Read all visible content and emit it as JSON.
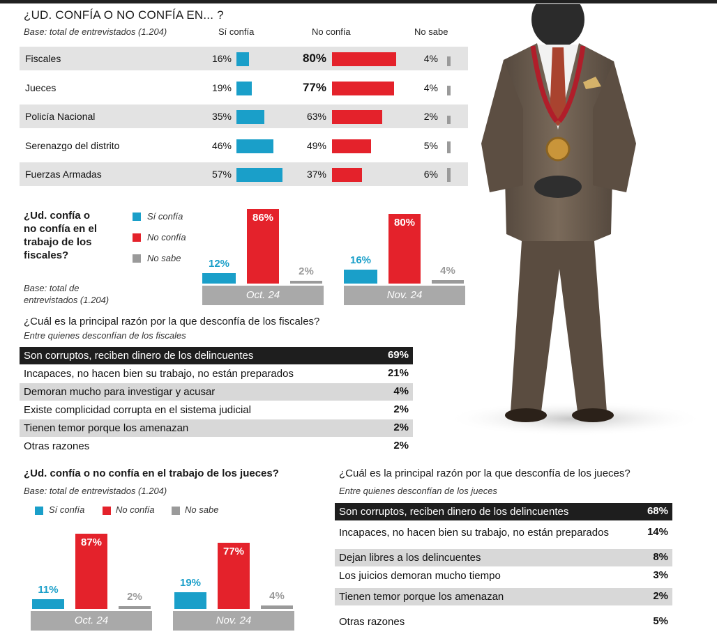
{
  "header": {
    "title": "¿UD. CONFÍA O NO CONFÍA EN... ?",
    "base": "Base: total de entrevistados (1.204)",
    "col_si": "Sí confía",
    "col_no": "No confía",
    "col_ns": "No sabe"
  },
  "colors": {
    "si": "#1a9fc9",
    "no": "#e4222b",
    "ns": "#9a9a9a",
    "dark": "#1e1e1e"
  },
  "chart_data": [
    {
      "type": "bar",
      "title": "¿UD. CONFÍA O NO CONFÍA EN... ?",
      "orientation": "horizontal",
      "categories": [
        "Fiscales",
        "Jueces",
        "Policía Nacional",
        "Serenazgo del distrito",
        "Fuerzas Armadas"
      ],
      "series": [
        {
          "name": "Sí confía",
          "values": [
            16,
            19,
            35,
            46,
            57
          ],
          "labels": [
            "16%",
            "19%",
            "35%",
            "46%",
            "57%"
          ]
        },
        {
          "name": "No confía",
          "values": [
            80,
            77,
            63,
            49,
            37
          ],
          "labels": [
            "80%",
            "77%",
            "63%",
            "49%",
            "37%"
          ]
        },
        {
          "name": "No sabe",
          "values": [
            4,
            4,
            2,
            5,
            6
          ],
          "labels": [
            "4%",
            "4%",
            "2%",
            "5%",
            "6%"
          ]
        }
      ]
    },
    {
      "type": "bar",
      "title": "¿Ud. confía o no confía en el trabajo de los fiscales?",
      "note": "Base: total de entrevistados (1.204)",
      "categories": [
        "Oct. 24",
        "Nov. 24"
      ],
      "series": [
        {
          "name": "Sí confía",
          "values": [
            12,
            16
          ],
          "labels": [
            "12%",
            "16%"
          ]
        },
        {
          "name": "No confía",
          "values": [
            86,
            80
          ],
          "labels": [
            "86%",
            "80%"
          ]
        },
        {
          "name": "No sabe",
          "values": [
            2,
            4
          ],
          "labels": [
            "2%",
            "4%"
          ]
        }
      ]
    },
    {
      "type": "table",
      "title": "¿Cuál es la principal razón por la que desconfía de los fiscales?",
      "subtitle": "Entre quienes desconfían de los fiscales",
      "rows": [
        {
          "label": "Son corruptos, reciben dinero de los delincuentes",
          "value": "69%"
        },
        {
          "label": "Incapaces, no hacen bien su trabajo, no están preparados",
          "value": "21%"
        },
        {
          "label": "Demoran mucho para investigar y acusar",
          "value": "4%"
        },
        {
          "label": "Existe complicidad corrupta en el sistema judicial",
          "value": "2%"
        },
        {
          "label": "Tienen temor porque los amenazan",
          "value": "2%"
        },
        {
          "label": "Otras razones",
          "value": "2%"
        }
      ]
    },
    {
      "type": "bar",
      "title": "¿Ud. confía o no confía en el trabajo de los jueces?",
      "note": "Base: total de entrevistados (1.204)",
      "categories": [
        "Oct. 24",
        "Nov. 24"
      ],
      "series": [
        {
          "name": "Sí confía",
          "values": [
            11,
            19
          ],
          "labels": [
            "11%",
            "19%"
          ]
        },
        {
          "name": "No confía",
          "values": [
            87,
            77
          ],
          "labels": [
            "87%",
            "77%"
          ]
        },
        {
          "name": "No sabe",
          "values": [
            2,
            4
          ],
          "labels": [
            "2%",
            "4%"
          ]
        }
      ]
    },
    {
      "type": "table",
      "title": "¿Cuál es la principal razón por la que desconfía de los jueces?",
      "subtitle": "Entre quienes desconfían de los jueces",
      "rows": [
        {
          "label": "Son corruptos, reciben dinero de los delincuentes",
          "value": "68%"
        },
        {
          "label": "Incapaces, no hacen bien su trabajo, no están preparados",
          "value": "14%"
        },
        {
          "label": "Dejan libres a los delincuentes",
          "value": "8%"
        },
        {
          "label": "Los juicios demoran mucho tiempo",
          "value": "3%"
        },
        {
          "label": "Tienen temor porque los amenazan",
          "value": "2%"
        },
        {
          "label": "Otras razones",
          "value": "5%"
        }
      ]
    }
  ],
  "fiscales_block": {
    "question_lines": [
      "¿Ud. confía o",
      "no confía en el",
      "trabajo de los",
      "fiscales?"
    ],
    "base_lines": [
      "Base: total de",
      "entrevistados (1.204)"
    ],
    "legend": [
      "Sí confía",
      "No confía",
      "No sabe"
    ]
  },
  "razon_fiscales": {
    "title": "¿Cuál es la principal razón por la que desconfía de los fiscales?",
    "subtitle": "Entre quienes desconfían de los fiscales"
  },
  "jueces_block": {
    "title": "¿Ud. confía o no confía en el trabajo de los jueces?",
    "base": "Base: total de entrevistados (1.204)",
    "legend": [
      "Sí confía",
      "No confía",
      "No sabe"
    ]
  },
  "razon_jueces": {
    "title": "¿Cuál es la principal razón por la que desconfía de los jueces?",
    "subtitle": "Entre quienes desconfían de los jueces"
  },
  "illustration": {
    "icon": "judge-figure-illustration"
  }
}
